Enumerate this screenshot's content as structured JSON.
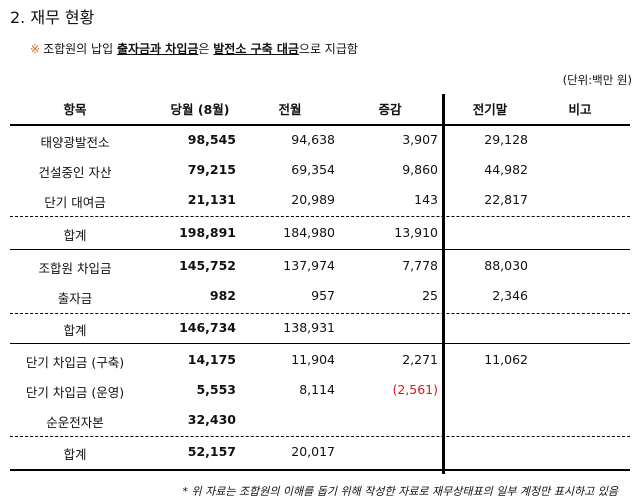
{
  "heading": "2.  재무 현황",
  "notice": {
    "mark": "※",
    "t1": "조합원의 납입 ",
    "b1": "출자금과 차입금",
    "t2": "은 ",
    "b2": "발전소 구축 대금",
    "t3": "으로 지급함"
  },
  "unit": "(단위:백만 원)",
  "headers": {
    "item": "항목",
    "current": "당월 (8월)",
    "previous": "전월",
    "change": "증감",
    "last_year": "전기말",
    "note": "비고"
  },
  "rows": [
    {
      "item": "태양광발전소",
      "current": "98,545",
      "previous": "94,638",
      "change": "3,907",
      "last_year": "29,128"
    },
    {
      "item": "건설중인 자산",
      "current": "79,215",
      "previous": "69,354",
      "change": "9,860",
      "last_year": "44,982"
    },
    {
      "item": "단기 대여금",
      "current": "21,131",
      "previous": "20,989",
      "change": "143",
      "last_year": "22,817"
    },
    {
      "item": "합계",
      "current": "198,891",
      "previous": "184,980",
      "change": "13,910",
      "last_year": ""
    },
    {
      "item": "조합원 차입금",
      "current": "145,752",
      "previous": "137,974",
      "change": "7,778",
      "last_year": "88,030"
    },
    {
      "item": "출자금",
      "current": "982",
      "previous": "957",
      "change": "25",
      "last_year": "2,346"
    },
    {
      "item": "합계",
      "current": "146,734",
      "previous": "138,931",
      "change": "",
      "last_year": ""
    },
    {
      "item": "단기 차입금 (구축)",
      "current": "14,175",
      "previous": "11,904",
      "change": "2,271",
      "last_year": "11,062"
    },
    {
      "item": "단기 차입금 (운영)",
      "current": "5,553",
      "previous": "8,114",
      "change": "(2,561)",
      "last_year": ""
    },
    {
      "item": "순운전자본",
      "current": "32,430",
      "previous": "",
      "change": "",
      "last_year": ""
    },
    {
      "item": "합계",
      "current": "52,157",
      "previous": "20,017",
      "change": "",
      "last_year": ""
    }
  ],
  "footnote": "* 위 자료는 조합원의 이해를 돕기 위해 작성한 자료로 재무상태표의 일부 계정만 표시하고 있음",
  "colors": {
    "notice_mark": "#e06a1b",
    "negative": "#e0141b"
  }
}
